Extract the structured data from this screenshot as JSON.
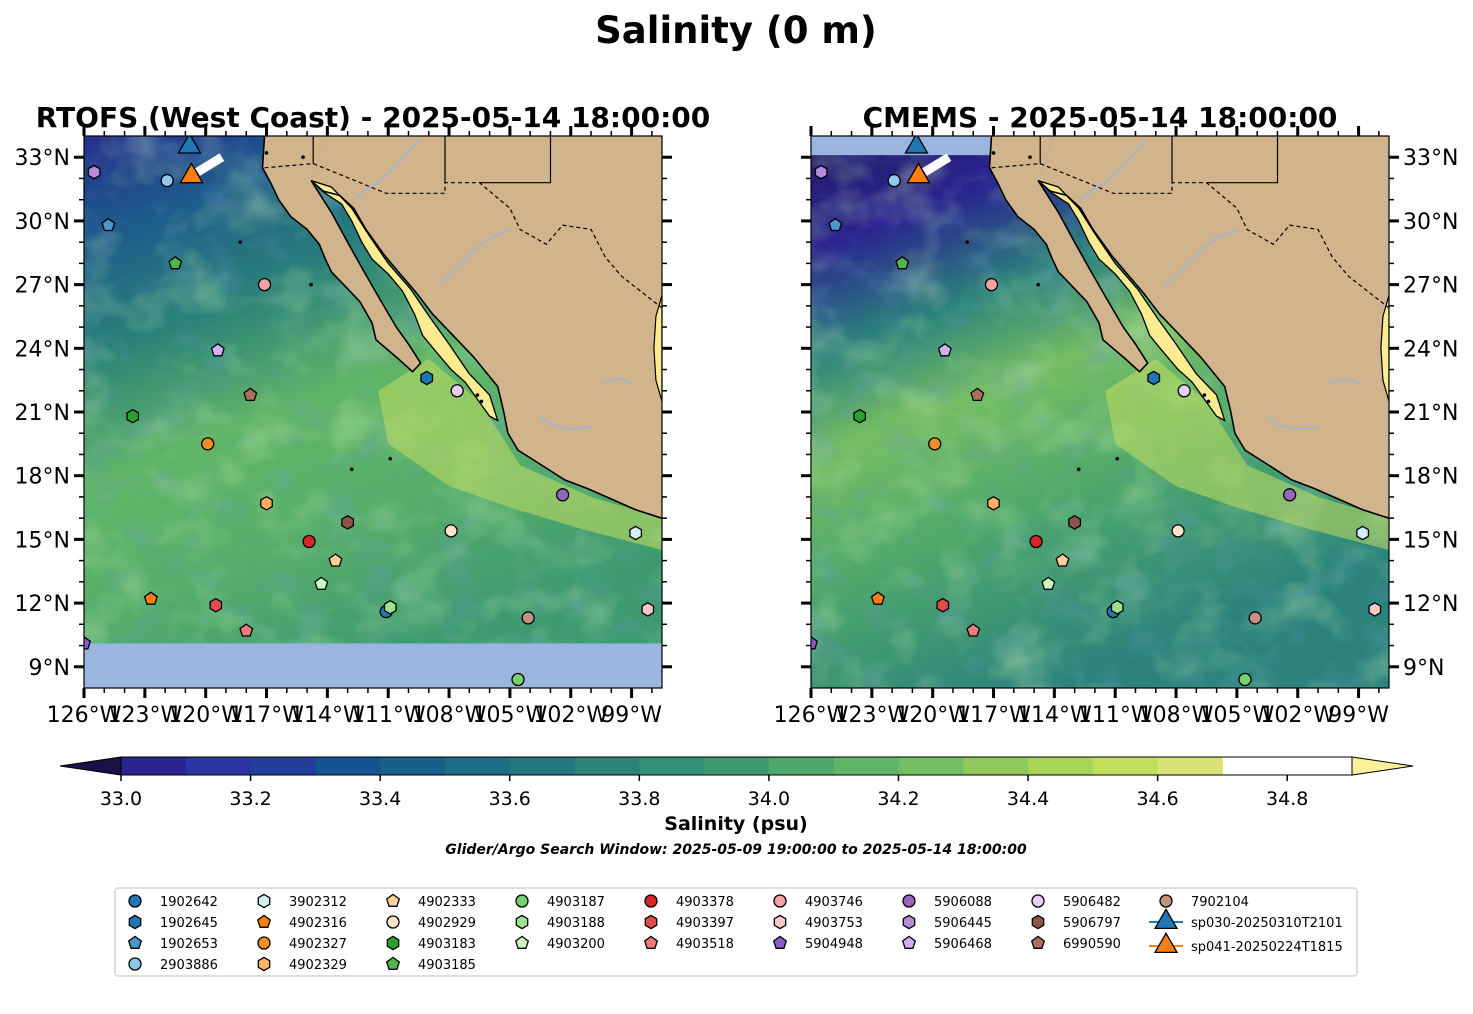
{
  "figure": {
    "title": "Salinity (0 m)",
    "search_window": "Glider/Argo Search Window: 2025-05-09 19:00:00 to 2025-05-14 18:00:00"
  },
  "panels": [
    {
      "title": "RTOFS (West Coast) - 2025-05-14 18:00:00",
      "lat_labels_side": "left",
      "no_data_band": "south of 10°N"
    },
    {
      "title": "CMEMS - 2025-05-14 18:00:00",
      "lat_labels_side": "right",
      "no_data_band": "north of 33°N"
    }
  ],
  "map_extent": {
    "lon": [
      -126,
      -97.5
    ],
    "lat": [
      8,
      34
    ]
  },
  "axes": {
    "lon_ticks": [
      -126,
      -123,
      -120,
      -117,
      -114,
      -111,
      -108,
      -105,
      -102,
      -99
    ],
    "lon_labels": [
      "126°W",
      "123°W",
      "120°W",
      "117°W",
      "114°W",
      "111°W",
      "108°W",
      "105°W",
      "102°W",
      "99°W"
    ],
    "lat_ticks": [
      9,
      12,
      15,
      18,
      21,
      24,
      27,
      30,
      33
    ],
    "lat_labels": [
      "9°N",
      "12°N",
      "15°N",
      "18°N",
      "21°N",
      "24°N",
      "27°N",
      "30°N",
      "33°N"
    ]
  },
  "colorbar": {
    "label": "Salinity (psu)",
    "range": [
      32.9,
      34.9
    ],
    "step": 0.1,
    "extend": "both",
    "colors": [
      "#231b66",
      "#2a2390",
      "#2c34a2",
      "#223f9c",
      "#165391",
      "#166089",
      "#1d6c86",
      "#23787f",
      "#2b837c",
      "#348f77",
      "#3e9a71",
      "#4da76b",
      "#5fb468",
      "#75bd63",
      "#8ec85d",
      "#a8d559",
      "#c2de5e",
      "#d9e274"
    ],
    "under_color": "#1a1045",
    "over_color": "#fdf09a",
    "tick_values": [
      33.0,
      33.2,
      33.4,
      33.6,
      33.8,
      34.0,
      34.2,
      34.4,
      34.6,
      34.8
    ],
    "tick_labels": [
      "33.0",
      "33.2",
      "33.4",
      "33.6",
      "33.8",
      "34.0",
      "34.2",
      "34.4",
      "34.6",
      "34.8"
    ]
  },
  "colors": {
    "land": "#d2b48c",
    "no_data": "#9ab5e0",
    "rivers": "#9bb5d5",
    "ocean_base": "#3f9a73"
  },
  "platforms": [
    {
      "id": "1902642",
      "marker": "circle",
      "color": "#1f77b4",
      "lon": -111.1,
      "lat": 11.6
    },
    {
      "id": "1902645",
      "marker": "hexagon",
      "color": "#1f77b4",
      "lon": -109.1,
      "lat": 22.6
    },
    {
      "id": "1902653",
      "marker": "pentagon",
      "color": "#4a97d0",
      "lon": -124.8,
      "lat": 29.8
    },
    {
      "id": "2903886",
      "marker": "circle",
      "color": "#8ec9ec",
      "lon": -121.9,
      "lat": 31.9
    },
    {
      "id": "3902312",
      "marker": "hexagon",
      "color": "#d5ecf9",
      "lon": -98.8,
      "lat": 15.3
    },
    {
      "id": "4902316",
      "marker": "pentagon",
      "color": "#ff7f0e",
      "lon": -122.7,
      "lat": 12.2
    },
    {
      "id": "4902327",
      "marker": "circle",
      "color": "#f28e2b",
      "lon": -119.9,
      "lat": 19.5
    },
    {
      "id": "4902329",
      "marker": "hexagon",
      "color": "#ffb062",
      "lon": -117.0,
      "lat": 16.7
    },
    {
      "id": "4902333",
      "marker": "pentagon",
      "color": "#ffcf9a",
      "lon": -113.6,
      "lat": 14.0
    },
    {
      "id": "4902929",
      "marker": "circle",
      "color": "#ffe3c8",
      "lon": -107.9,
      "lat": 15.4
    },
    {
      "id": "4902929b",
      "marker": "circle",
      "color": "#ffe3c8",
      "lon": -107.5,
      "lat": 15.4,
      "hidden": true
    },
    {
      "id": "4903183",
      "marker": "hexagon",
      "color": "#2ca02c",
      "lon": -123.6,
      "lat": 20.8
    },
    {
      "id": "4903185",
      "marker": "pentagon",
      "color": "#4cb84c",
      "lon": -121.5,
      "lat": 28.0
    },
    {
      "id": "4903187",
      "marker": "circle",
      "color": "#76d16e",
      "lon": -104.6,
      "lat": 8.4
    },
    {
      "id": "4903188",
      "marker": "hexagon",
      "color": "#9be38e",
      "lon": -110.9,
      "lat": 11.8
    },
    {
      "id": "4903200",
      "marker": "pentagon",
      "color": "#ccf5c4",
      "lon": -114.3,
      "lat": 12.9
    },
    {
      "id": "4903378",
      "marker": "circle",
      "color": "#d62728",
      "lon": -114.9,
      "lat": 14.9
    },
    {
      "id": "4903397",
      "marker": "hexagon",
      "color": "#e04b4b",
      "lon": -119.5,
      "lat": 11.9
    },
    {
      "id": "4903518",
      "marker": "pentagon",
      "color": "#ec7a7a",
      "lon": -118.0,
      "lat": 10.7
    },
    {
      "id": "4903746",
      "marker": "circle",
      "color": "#f4a3a3",
      "lon": -117.1,
      "lat": 27.0
    },
    {
      "id": "4903753",
      "marker": "hexagon",
      "color": "#f9c8c8",
      "lon": -98.2,
      "lat": 11.7
    },
    {
      "id": "5904948",
      "marker": "pentagon",
      "color": "#8c5cc8",
      "lon": -126.0,
      "lat": 10.1
    },
    {
      "id": "5906088",
      "marker": "circle",
      "color": "#9467bd",
      "lon": -102.4,
      "lat": 17.1
    },
    {
      "id": "5906445",
      "marker": "hexagon",
      "color": "#b48bd9",
      "lon": -125.5,
      "lat": 32.3
    },
    {
      "id": "5906468",
      "marker": "pentagon",
      "color": "#cfb1ee",
      "lon": -119.4,
      "lat": 23.9
    },
    {
      "id": "5906482",
      "marker": "circle",
      "color": "#e6d0fb",
      "lon": -107.6,
      "lat": 22.0
    },
    {
      "id": "5906797",
      "marker": "hexagon",
      "color": "#8c564b",
      "lon": -113.0,
      "lat": 15.8
    },
    {
      "id": "6990590",
      "marker": "pentagon",
      "color": "#a8715f",
      "lon": -117.8,
      "lat": 21.8
    },
    {
      "id": "7902104",
      "marker": "circle",
      "color": "#c49080",
      "lon": -104.1,
      "lat": 11.3
    },
    {
      "id": "sp030-20250310T2101",
      "marker": "triangle",
      "color": "#1f77b4",
      "lon": -120.8,
      "lat": 33.5
    },
    {
      "id": "sp041-20250224T1815",
      "marker": "triangle",
      "color": "#ff7f0e",
      "lon": -120.7,
      "lat": 32.1
    }
  ],
  "legend": {
    "columns": [
      [
        "1902642",
        "1902645",
        "1902653",
        "2903886"
      ],
      [
        "3902312",
        "4902316",
        "4902327",
        "4902329"
      ],
      [
        "4902333",
        "4902929",
        "4903183",
        "4903185"
      ],
      [
        "4903187",
        "4903188",
        "4903200"
      ],
      [
        "4903378",
        "4903397",
        "4903518"
      ],
      [
        "4903746",
        "4903753",
        "5904948"
      ],
      [
        "5906088",
        "5906445",
        "5906468"
      ],
      [
        "5906482",
        "5906797",
        "6990590"
      ],
      [
        "7902104",
        "sp030-20250310T2101",
        "sp041-20250224T1815"
      ]
    ]
  }
}
